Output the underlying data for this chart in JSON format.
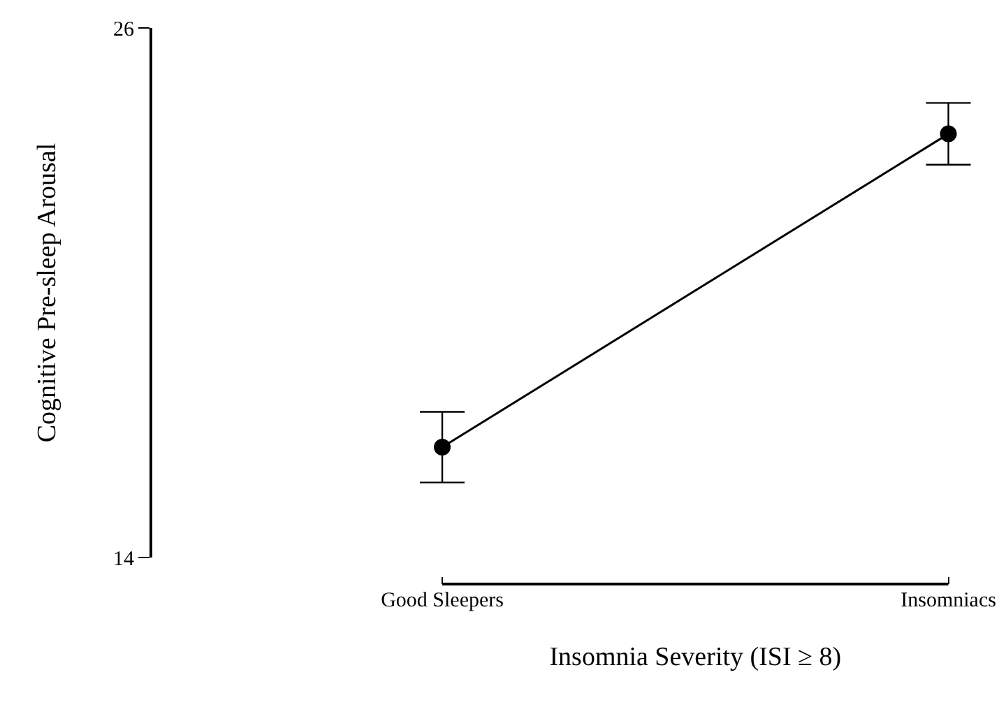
{
  "chart_data": {
    "type": "line",
    "xlabel": "Insomnia Severity (ISI ≥ 8)",
    "ylabel": "Cognitive Pre-sleep Arousal",
    "categories": [
      "Good Sleepers",
      "Insomniacs"
    ],
    "series": [
      {
        "color": "#000000",
        "values": [
          16.5,
          23.6
        ],
        "errors": [
          0.8,
          0.7
        ]
      }
    ],
    "ylim": [
      14,
      26
    ],
    "yticks": [
      14,
      26
    ],
    "marker": "circle",
    "line_style": "solid"
  }
}
